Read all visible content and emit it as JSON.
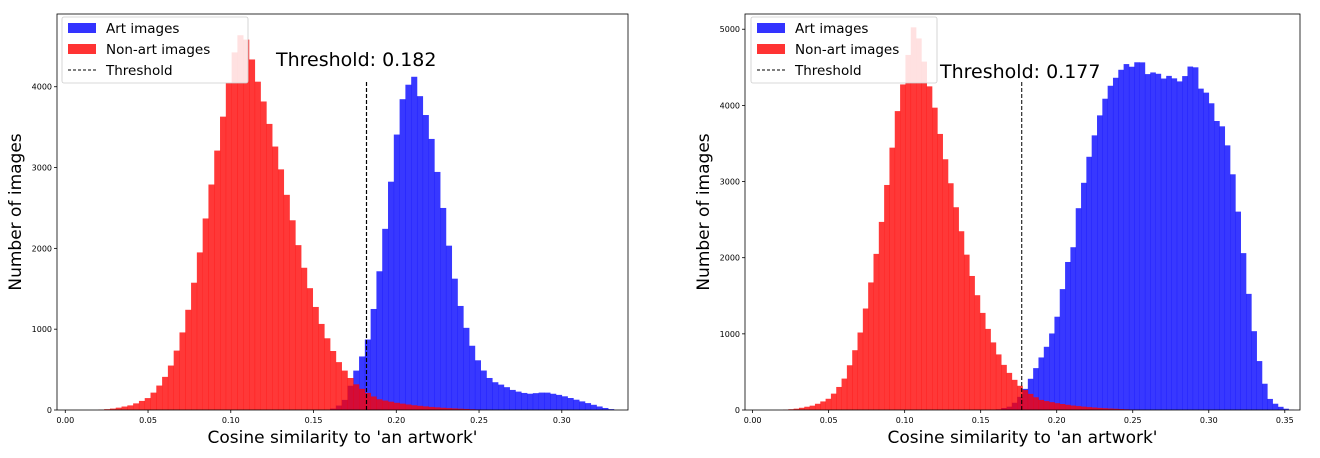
{
  "chart_data": [
    {
      "type": "bar",
      "xlabel": "Cosine similarity to 'an artwork'",
      "ylabel": "Number of images",
      "xlim": [
        -0.005,
        0.34
      ],
      "ylim": [
        0,
        4900
      ],
      "xticks": [
        "0.00",
        "0.05",
        "0.10",
        "0.15",
        "0.20",
        "0.25",
        "0.30"
      ],
      "yticks": [
        "0",
        "1000",
        "2000",
        "3000",
        "4000"
      ],
      "threshold": 0.182,
      "threshold_label": "Threshold: 0.182",
      "legend_position": "upper-left",
      "legend": [
        "Art images",
        "Non-art images",
        "Threshold"
      ],
      "series": [
        {
          "name": "Art images",
          "color": "#0000ff",
          "points": [
            [
              0.16,
              0
            ],
            [
              0.165,
              50
            ],
            [
              0.17,
              150
            ],
            [
              0.173,
              350
            ],
            [
              0.176,
              500
            ],
            [
              0.18,
              700
            ],
            [
              0.184,
              950
            ],
            [
              0.187,
              1350
            ],
            [
              0.19,
              1750
            ],
            [
              0.193,
              2200
            ],
            [
              0.196,
              2700
            ],
            [
              0.199,
              3200
            ],
            [
              0.202,
              3700
            ],
            [
              0.205,
              3950
            ],
            [
              0.208,
              4050
            ],
            [
              0.211,
              4130
            ],
            [
              0.214,
              3900
            ],
            [
              0.217,
              3700
            ],
            [
              0.22,
              3500
            ],
            [
              0.223,
              3150
            ],
            [
              0.226,
              2800
            ],
            [
              0.229,
              2400
            ],
            [
              0.232,
              2000
            ],
            [
              0.235,
              1650
            ],
            [
              0.238,
              1350
            ],
            [
              0.241,
              1100
            ],
            [
              0.244,
              900
            ],
            [
              0.247,
              720
            ],
            [
              0.25,
              580
            ],
            [
              0.253,
              480
            ],
            [
              0.256,
              400
            ],
            [
              0.26,
              340
            ],
            [
              0.265,
              300
            ],
            [
              0.27,
              250
            ],
            [
              0.275,
              220
            ],
            [
              0.28,
              200
            ],
            [
              0.285,
              210
            ],
            [
              0.29,
              220
            ],
            [
              0.295,
              200
            ],
            [
              0.3,
              180
            ],
            [
              0.305,
              150
            ],
            [
              0.31,
              120
            ],
            [
              0.315,
              90
            ],
            [
              0.32,
              60
            ],
            [
              0.325,
              30
            ],
            [
              0.33,
              10
            ],
            [
              0.333,
              0
            ]
          ]
        },
        {
          "name": "Non-art images",
          "color": "#ff0000",
          "points": [
            [
              0.02,
              0
            ],
            [
              0.03,
              20
            ],
            [
              0.035,
              40
            ],
            [
              0.04,
              60
            ],
            [
              0.045,
              100
            ],
            [
              0.05,
              150
            ],
            [
              0.055,
              250
            ],
            [
              0.06,
              400
            ],
            [
              0.065,
              600
            ],
            [
              0.07,
              900
            ],
            [
              0.075,
              1300
            ],
            [
              0.08,
              1800
            ],
            [
              0.085,
              2400
            ],
            [
              0.09,
              3000
            ],
            [
              0.095,
              3600
            ],
            [
              0.1,
              4200
            ],
            [
              0.103,
              4500
            ],
            [
              0.106,
              4650
            ],
            [
              0.109,
              4600
            ],
            [
              0.112,
              4400
            ],
            [
              0.115,
              4150
            ],
            [
              0.12,
              3800
            ],
            [
              0.125,
              3400
            ],
            [
              0.13,
              3000
            ],
            [
              0.135,
              2550
            ],
            [
              0.14,
              2100
            ],
            [
              0.145,
              1700
            ],
            [
              0.15,
              1350
            ],
            [
              0.155,
              1050
            ],
            [
              0.16,
              800
            ],
            [
              0.165,
              600
            ],
            [
              0.17,
              450
            ],
            [
              0.175,
              330
            ],
            [
              0.18,
              250
            ],
            [
              0.185,
              180
            ],
            [
              0.19,
              130
            ],
            [
              0.2,
              90
            ],
            [
              0.21,
              60
            ],
            [
              0.22,
              40
            ],
            [
              0.23,
              25
            ],
            [
              0.24,
              15
            ],
            [
              0.25,
              5
            ],
            [
              0.26,
              0
            ]
          ]
        }
      ]
    },
    {
      "type": "bar",
      "xlabel": "Cosine similarity to 'an artwork'",
      "ylabel": "Number of images",
      "xlim": [
        -0.005,
        0.36
      ],
      "ylim": [
        0,
        5200
      ],
      "xticks": [
        "0.00",
        "0.05",
        "0.10",
        "0.15",
        "0.20",
        "0.25",
        "0.30",
        "0.35"
      ],
      "yticks": [
        "0",
        "1000",
        "2000",
        "3000",
        "4000",
        "5000"
      ],
      "threshold": 0.177,
      "threshold_label": "Threshold: 0.177",
      "legend_position": "upper-left",
      "legend": [
        "Art images",
        "Non-art images",
        "Threshold"
      ],
      "series": [
        {
          "name": "Art images",
          "color": "#0000ff",
          "points": [
            [
              0.16,
              0
            ],
            [
              0.17,
              50
            ],
            [
              0.175,
              150
            ],
            [
              0.18,
              300
            ],
            [
              0.185,
              500
            ],
            [
              0.19,
              700
            ],
            [
              0.195,
              900
            ],
            [
              0.2,
              1200
            ],
            [
              0.203,
              1500
            ],
            [
              0.206,
              1850
            ],
            [
              0.208,
              2000
            ],
            [
              0.21,
              2100
            ],
            [
              0.212,
              2200
            ],
            [
              0.215,
              2800
            ],
            [
              0.218,
              3000
            ],
            [
              0.222,
              3400
            ],
            [
              0.226,
              3700
            ],
            [
              0.23,
              4000
            ],
            [
              0.235,
              4250
            ],
            [
              0.24,
              4400
            ],
            [
              0.245,
              4550
            ],
            [
              0.25,
              4500
            ],
            [
              0.255,
              4620
            ],
            [
              0.26,
              4400
            ],
            [
              0.265,
              4450
            ],
            [
              0.27,
              4350
            ],
            [
              0.275,
              4400
            ],
            [
              0.28,
              4300
            ],
            [
              0.285,
              4400
            ],
            [
              0.29,
              4600
            ],
            [
              0.295,
              4200
            ],
            [
              0.3,
              4150
            ],
            [
              0.305,
              3800
            ],
            [
              0.31,
              3700
            ],
            [
              0.315,
              3200
            ],
            [
              0.32,
              2500
            ],
            [
              0.325,
              1700
            ],
            [
              0.33,
              1000
            ],
            [
              0.335,
              450
            ],
            [
              0.34,
              150
            ],
            [
              0.345,
              60
            ],
            [
              0.35,
              20
            ],
            [
              0.355,
              0
            ]
          ]
        },
        {
          "name": "Non-art images",
          "color": "#ff0000",
          "points": [
            [
              0.02,
              0
            ],
            [
              0.03,
              20
            ],
            [
              0.035,
              40
            ],
            [
              0.04,
              60
            ],
            [
              0.045,
              100
            ],
            [
              0.05,
              150
            ],
            [
              0.055,
              250
            ],
            [
              0.06,
              400
            ],
            [
              0.065,
              650
            ],
            [
              0.07,
              950
            ],
            [
              0.075,
              1400
            ],
            [
              0.08,
              1900
            ],
            [
              0.085,
              2500
            ],
            [
              0.09,
              3200
            ],
            [
              0.095,
              3900
            ],
            [
              0.1,
              4400
            ],
            [
              0.103,
              4750
            ],
            [
              0.106,
              5050
            ],
            [
              0.109,
              4900
            ],
            [
              0.112,
              4650
            ],
            [
              0.115,
              4350
            ],
            [
              0.12,
              3950
            ],
            [
              0.125,
              3450
            ],
            [
              0.13,
              3000
            ],
            [
              0.135,
              2550
            ],
            [
              0.14,
              2100
            ],
            [
              0.145,
              1700
            ],
            [
              0.15,
              1350
            ],
            [
              0.155,
              1050
            ],
            [
              0.16,
              800
            ],
            [
              0.165,
              600
            ],
            [
              0.17,
              450
            ],
            [
              0.175,
              330
            ],
            [
              0.18,
              250
            ],
            [
              0.185,
              180
            ],
            [
              0.19,
              130
            ],
            [
              0.2,
              90
            ],
            [
              0.21,
              60
            ],
            [
              0.22,
              40
            ],
            [
              0.23,
              25
            ],
            [
              0.24,
              15
            ],
            [
              0.25,
              5
            ],
            [
              0.26,
              0
            ]
          ]
        }
      ]
    }
  ]
}
